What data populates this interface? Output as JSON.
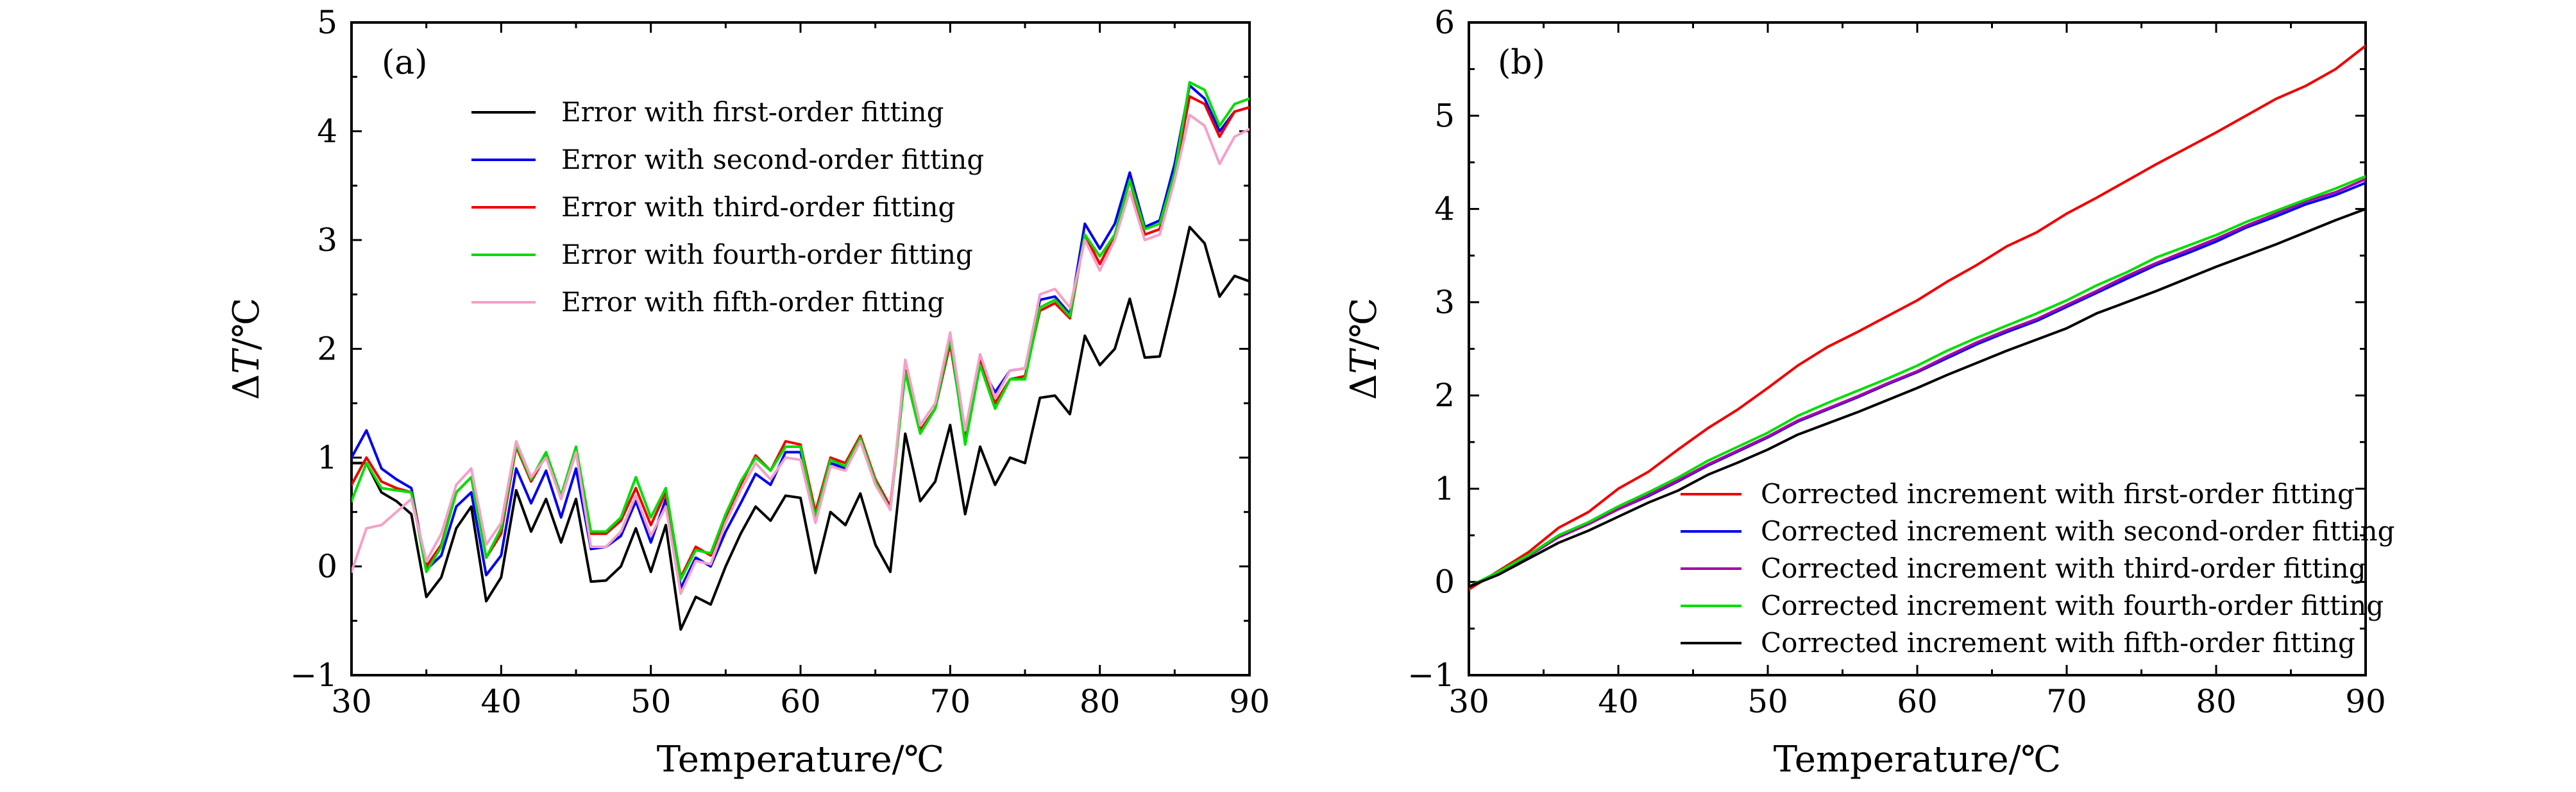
{
  "chart_data": [
    {
      "type": "line",
      "panel_label": "(a)",
      "xlabel": "Temperature/℃",
      "ylabel_delta": "Δ",
      "ylabel_var": "T",
      "ylabel_unit": "/℃",
      "xlim": [
        30,
        90
      ],
      "ylim": [
        -1,
        5
      ],
      "xticks": [
        30,
        40,
        50,
        60,
        70,
        80,
        90
      ],
      "yticks": [
        -1,
        0,
        1,
        2,
        3,
        4,
        5
      ],
      "legend_position": "top-center",
      "x": [
        30,
        31,
        32,
        33,
        34,
        35,
        36,
        37,
        38,
        39,
        40,
        41,
        42,
        43,
        44,
        45,
        46,
        47,
        48,
        49,
        50,
        51,
        52,
        53,
        54,
        55,
        56,
        57,
        58,
        59,
        60,
        61,
        62,
        63,
        64,
        65,
        66,
        67,
        68,
        69,
        70,
        71,
        72,
        73,
        74,
        75,
        76,
        77,
        78,
        79,
        80,
        81,
        82,
        83,
        84,
        85,
        86,
        87,
        88,
        89,
        90
      ],
      "series": [
        {
          "name": "Error with first-order fitting",
          "color": "#000000",
          "values": [
            0.95,
            0.95,
            0.68,
            0.6,
            0.48,
            -0.28,
            -0.1,
            0.35,
            0.55,
            -0.32,
            -0.1,
            0.7,
            0.32,
            0.62,
            0.22,
            0.62,
            -0.14,
            -0.13,
            0.0,
            0.35,
            -0.05,
            0.38,
            -0.58,
            -0.28,
            -0.35,
            0.0,
            0.3,
            0.55,
            0.42,
            0.65,
            0.63,
            -0.06,
            0.5,
            0.38,
            0.67,
            0.2,
            -0.05,
            1.22,
            0.6,
            0.78,
            1.3,
            0.48,
            1.1,
            0.75,
            1.0,
            0.95,
            1.55,
            1.57,
            1.4,
            2.12,
            1.85,
            2.0,
            2.46,
            1.92,
            1.93,
            2.5,
            3.12,
            2.97,
            2.48,
            2.67,
            2.62
          ]
        },
        {
          "name": "Error with second-order fitting",
          "color": "#0000ee",
          "values": [
            1.0,
            1.25,
            0.9,
            0.8,
            0.72,
            -0.03,
            0.1,
            0.55,
            0.68,
            -0.08,
            0.1,
            0.9,
            0.58,
            0.88,
            0.45,
            0.9,
            0.16,
            0.18,
            0.28,
            0.6,
            0.22,
            0.62,
            -0.2,
            0.08,
            0.0,
            0.32,
            0.58,
            0.85,
            0.75,
            1.05,
            1.05,
            0.45,
            0.95,
            0.9,
            1.15,
            0.8,
            0.55,
            1.8,
            1.25,
            1.45,
            2.05,
            1.18,
            1.85,
            1.6,
            1.8,
            1.82,
            2.45,
            2.48,
            2.32,
            3.15,
            2.92,
            3.15,
            3.62,
            3.12,
            3.18,
            3.7,
            4.42,
            4.3,
            4.0,
            4.18,
            4.22
          ]
        },
        {
          "name": "Error with third-order fitting",
          "color": "#ee0000",
          "values": [
            0.75,
            1.0,
            0.78,
            0.72,
            0.68,
            0.0,
            0.2,
            0.68,
            0.82,
            0.08,
            0.3,
            1.1,
            0.78,
            1.02,
            0.62,
            1.05,
            0.3,
            0.3,
            0.42,
            0.72,
            0.38,
            0.68,
            -0.1,
            0.18,
            0.1,
            0.45,
            0.75,
            1.02,
            0.88,
            1.15,
            1.12,
            0.5,
            1.0,
            0.95,
            1.2,
            0.8,
            0.55,
            1.8,
            1.25,
            1.45,
            2.05,
            1.2,
            1.9,
            1.5,
            1.72,
            1.75,
            2.35,
            2.42,
            2.28,
            3.05,
            2.78,
            3.05,
            3.55,
            3.05,
            3.1,
            3.6,
            4.32,
            4.25,
            3.95,
            4.18,
            4.22
          ]
        },
        {
          "name": "Error with fourth-order fitting",
          "color": "#00dd00",
          "values": [
            0.6,
            0.95,
            0.72,
            0.7,
            0.68,
            -0.05,
            0.18,
            0.68,
            0.82,
            0.08,
            0.35,
            1.12,
            0.8,
            1.05,
            0.65,
            1.1,
            0.32,
            0.32,
            0.45,
            0.82,
            0.45,
            0.72,
            -0.12,
            0.15,
            0.12,
            0.48,
            0.78,
            1.0,
            0.88,
            1.1,
            1.1,
            0.45,
            0.98,
            0.92,
            1.18,
            0.78,
            0.52,
            1.78,
            1.22,
            1.45,
            2.1,
            1.12,
            1.85,
            1.45,
            1.72,
            1.72,
            2.38,
            2.45,
            2.3,
            3.05,
            2.85,
            3.05,
            3.55,
            3.1,
            3.15,
            3.62,
            4.45,
            4.38,
            4.05,
            4.25,
            4.3
          ]
        },
        {
          "name": "Error with fifth-order fitting",
          "color": "#f4a0c8",
          "values": [
            -0.05,
            0.35,
            0.38,
            0.5,
            0.62,
            0.05,
            0.3,
            0.75,
            0.9,
            0.2,
            0.4,
            1.15,
            0.82,
            1.0,
            0.62,
            1.05,
            0.18,
            0.18,
            0.32,
            0.65,
            0.28,
            0.55,
            -0.25,
            0.05,
            0.02,
            0.4,
            0.7,
            0.95,
            0.8,
            1.0,
            0.98,
            0.4,
            0.92,
            0.88,
            1.15,
            0.75,
            0.52,
            1.9,
            1.3,
            1.5,
            2.15,
            1.25,
            1.95,
            1.55,
            1.8,
            1.82,
            2.5,
            2.55,
            2.38,
            3.0,
            2.72,
            3.0,
            3.45,
            3.0,
            3.05,
            3.55,
            4.15,
            4.05,
            3.7,
            3.95,
            4.02
          ]
        }
      ]
    },
    {
      "type": "line",
      "panel_label": "(b)",
      "xlabel": "Temperature/℃",
      "ylabel_delta": "Δ",
      "ylabel_var": "T",
      "ylabel_unit": "/℃",
      "xlim": [
        30,
        90
      ],
      "ylim": [
        -1,
        6
      ],
      "xticks": [
        30,
        40,
        50,
        60,
        70,
        80,
        90
      ],
      "yticks": [
        -1,
        0,
        1,
        2,
        3,
        4,
        5,
        6
      ],
      "legend_position": "bottom-right",
      "x": [
        30,
        32,
        34,
        36,
        38,
        40,
        42,
        44,
        46,
        48,
        50,
        52,
        54,
        56,
        58,
        60,
        62,
        64,
        66,
        68,
        70,
        72,
        74,
        76,
        78,
        80,
        82,
        84,
        86,
        88,
        90
      ],
      "series": [
        {
          "name": "Corrected increment with first-order fitting",
          "color": "#ee0000",
          "values": [
            -0.08,
            0.12,
            0.32,
            0.58,
            0.75,
            1.0,
            1.18,
            1.42,
            1.65,
            1.85,
            2.08,
            2.32,
            2.52,
            2.68,
            2.85,
            3.02,
            3.22,
            3.4,
            3.6,
            3.75,
            3.95,
            4.12,
            4.3,
            4.48,
            4.65,
            4.82,
            5.0,
            5.18,
            5.32,
            5.5,
            5.75
          ]
        },
        {
          "name": "Corrected increment with second-order fitting",
          "color": "#0000ee",
          "values": [
            -0.05,
            0.1,
            0.28,
            0.48,
            0.62,
            0.78,
            0.92,
            1.08,
            1.25,
            1.4,
            1.55,
            1.72,
            1.85,
            1.98,
            2.12,
            2.25,
            2.4,
            2.55,
            2.68,
            2.8,
            2.95,
            3.1,
            3.25,
            3.4,
            3.52,
            3.65,
            3.8,
            3.92,
            4.05,
            4.15,
            4.28
          ]
        },
        {
          "name": "Corrected increment with third-order fitting",
          "color": "#aa00aa",
          "values": [
            -0.05,
            0.1,
            0.28,
            0.48,
            0.62,
            0.78,
            0.93,
            1.09,
            1.26,
            1.41,
            1.56,
            1.73,
            1.86,
            1.99,
            2.13,
            2.26,
            2.42,
            2.57,
            2.7,
            2.82,
            2.97,
            3.12,
            3.28,
            3.42,
            3.55,
            3.68,
            3.82,
            3.95,
            4.08,
            4.18,
            4.32
          ]
        },
        {
          "name": "Corrected increment with fourth-order fitting",
          "color": "#00dd00",
          "values": [
            -0.05,
            0.11,
            0.29,
            0.5,
            0.64,
            0.81,
            0.96,
            1.12,
            1.3,
            1.45,
            1.6,
            1.78,
            1.92,
            2.05,
            2.18,
            2.32,
            2.48,
            2.62,
            2.75,
            2.88,
            3.02,
            3.18,
            3.32,
            3.48,
            3.6,
            3.72,
            3.86,
            3.98,
            4.1,
            4.22,
            4.35
          ]
        },
        {
          "name": "Corrected increment with fifth-order fitting",
          "color": "#000000",
          "values": [
            -0.05,
            0.08,
            0.25,
            0.42,
            0.55,
            0.7,
            0.85,
            0.98,
            1.15,
            1.28,
            1.42,
            1.58,
            1.7,
            1.82,
            1.95,
            2.08,
            2.22,
            2.35,
            2.48,
            2.6,
            2.72,
            2.88,
            3.0,
            3.12,
            3.25,
            3.38,
            3.5,
            3.62,
            3.75,
            3.88,
            4.0
          ]
        }
      ]
    }
  ]
}
